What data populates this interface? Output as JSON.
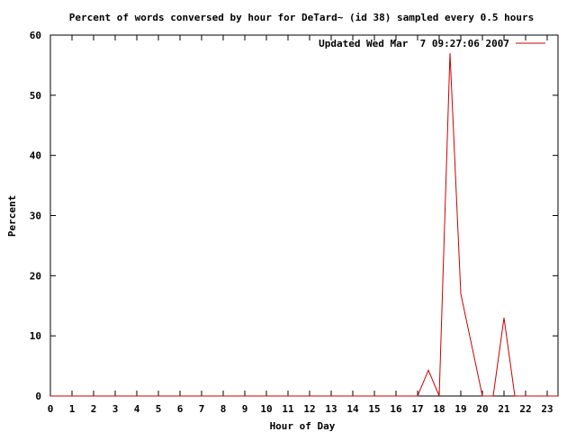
{
  "chart_data": {
    "type": "line",
    "title": "Percent of words conversed by hour for DeTard~ (id 38) sampled every 0.5 hours",
    "xlabel": "Hour of Day",
    "ylabel": "Percent",
    "xlim": [
      0,
      23.5
    ],
    "ylim": [
      0,
      60
    ],
    "x_ticks": [
      0,
      1,
      2,
      3,
      4,
      5,
      6,
      7,
      8,
      9,
      10,
      11,
      12,
      13,
      14,
      15,
      16,
      17,
      18,
      19,
      20,
      21,
      22,
      23
    ],
    "y_ticks": [
      0,
      10,
      20,
      30,
      40,
      50,
      60
    ],
    "grid": false,
    "legend_position": "top-right",
    "series": [
      {
        "name": "Updated Wed Mar  7 09:27:06 2007",
        "color": "#cc0000",
        "x": [
          0,
          0.5,
          1,
          1.5,
          2,
          2.5,
          3,
          3.5,
          4,
          4.5,
          5,
          5.5,
          6,
          6.5,
          7,
          7.5,
          8,
          8.5,
          9,
          9.5,
          10,
          10.5,
          11,
          11.5,
          12,
          12.5,
          13,
          13.5,
          14,
          14.5,
          15,
          15.5,
          16,
          16.5,
          17,
          17.5,
          18,
          18.5,
          19,
          19.5,
          20,
          20.5,
          21,
          21.5,
          22,
          22.5,
          23,
          23.5
        ],
        "y": [
          0,
          0,
          0,
          0,
          0,
          0,
          0,
          0,
          0,
          0,
          0,
          0,
          0,
          0,
          0,
          0,
          0,
          0,
          0,
          0,
          0,
          0,
          0,
          0,
          0,
          0,
          0,
          0,
          0,
          0,
          0,
          0,
          0,
          0,
          0,
          4.3,
          0,
          57,
          17,
          8.5,
          0,
          0,
          13,
          0,
          0,
          0,
          0,
          0
        ]
      }
    ]
  }
}
